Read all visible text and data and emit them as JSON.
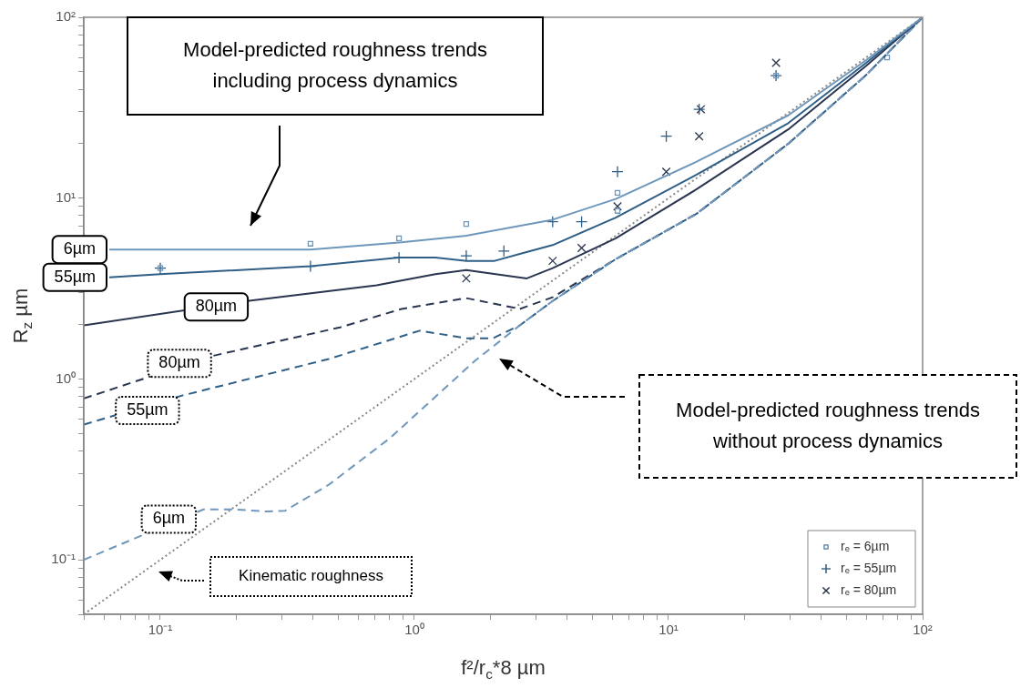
{
  "chart_data": {
    "type": "line",
    "xlabel": "f²/r$_{c}$*8 µm",
    "ylabel": "R$_{z}$ µm",
    "log": "xy",
    "legend": "bottom right",
    "xlim": [
      0.05,
      100
    ],
    "ylim": [
      0.05,
      100
    ],
    "xticks": [
      {
        "value": 0.05,
        "label": null
      },
      {
        "value": 0.06,
        "label": null
      },
      {
        "value": 0.07,
        "label": null
      },
      {
        "value": 0.08,
        "label": null
      },
      {
        "value": 0.09,
        "label": null
      },
      {
        "value": 0.1,
        "label": "10⁻¹"
      },
      {
        "value": 0.2,
        "label": null
      },
      {
        "value": 0.3,
        "label": null
      },
      {
        "value": 0.4,
        "label": null
      },
      {
        "value": 0.5,
        "label": null
      },
      {
        "value": 0.6,
        "label": null
      },
      {
        "value": 0.7,
        "label": null
      },
      {
        "value": 0.8,
        "label": null
      },
      {
        "value": 0.9,
        "label": null
      },
      {
        "value": 1,
        "label": "10⁰"
      },
      {
        "value": 2,
        "label": null
      },
      {
        "value": 3,
        "label": null
      },
      {
        "value": 4,
        "label": null
      },
      {
        "value": 5,
        "label": null
      },
      {
        "value": 6,
        "label": null
      },
      {
        "value": 7,
        "label": null
      },
      {
        "value": 8,
        "label": null
      },
      {
        "value": 9,
        "label": null
      },
      {
        "value": 10,
        "label": "10¹"
      },
      {
        "value": 20,
        "label": null
      },
      {
        "value": 30,
        "label": null
      },
      {
        "value": 40,
        "label": null
      },
      {
        "value": 50,
        "label": null
      },
      {
        "value": 60,
        "label": null
      },
      {
        "value": 70,
        "label": null
      },
      {
        "value": 80,
        "label": null
      },
      {
        "value": 90,
        "label": null
      },
      {
        "value": 100,
        "label": "10²"
      }
    ],
    "yticks": [
      {
        "value": 0.05,
        "label": null
      },
      {
        "value": 0.06,
        "label": null
      },
      {
        "value": 0.07,
        "label": null
      },
      {
        "value": 0.08,
        "label": null
      },
      {
        "value": 0.09,
        "label": null
      },
      {
        "value": 0.1,
        "label": "10⁻¹"
      },
      {
        "value": 0.2,
        "label": null
      },
      {
        "value": 0.3,
        "label": null
      },
      {
        "value": 0.4,
        "label": null
      },
      {
        "value": 0.5,
        "label": null
      },
      {
        "value": 0.6,
        "label": null
      },
      {
        "value": 0.7,
        "label": null
      },
      {
        "value": 0.8,
        "label": null
      },
      {
        "value": 0.9,
        "label": null
      },
      {
        "value": 1,
        "label": "10⁰"
      },
      {
        "value": 2,
        "label": null
      },
      {
        "value": 3,
        "label": null
      },
      {
        "value": 4,
        "label": null
      },
      {
        "value": 5,
        "label": null
      },
      {
        "value": 6,
        "label": null
      },
      {
        "value": 7,
        "label": null
      },
      {
        "value": 8,
        "label": null
      },
      {
        "value": 9,
        "label": null
      },
      {
        "value": 10,
        "label": "10¹"
      },
      {
        "value": 20,
        "label": null
      },
      {
        "value": 30,
        "label": null
      },
      {
        "value": 40,
        "label": null
      },
      {
        "value": 50,
        "label": null
      },
      {
        "value": 60,
        "label": null
      },
      {
        "value": 70,
        "label": null
      },
      {
        "value": 80,
        "label": null
      },
      {
        "value": 90,
        "label": null
      },
      {
        "value": 100,
        "label": "10²"
      }
    ],
    "series": [
      {
        "color": "#6f97bb",
        "line_style": "solid",
        "x": [
          0.063,
          0.1,
          0.2,
          0.39,
          0.89,
          1.6,
          3.5,
          6.2,
          12.9,
          29.6,
          60,
          100
        ],
        "values": [
          5.2,
          5.2,
          5.2,
          5.2,
          5.7,
          6.2,
          7.6,
          9.9,
          15.9,
          28.7,
          58,
          100
        ]
      },
      {
        "color": "#2f5f86",
        "line_style": "solid",
        "x": [
          0.063,
          0.1,
          0.39,
          0.87,
          1.21,
          1.6,
          2.07,
          2.72,
          3.5,
          6.2,
          12.9,
          29.6,
          60,
          100
        ],
        "values": [
          3.65,
          3.8,
          4.2,
          4.7,
          4.7,
          4.5,
          4.5,
          5.0,
          5.5,
          7.8,
          13.5,
          26,
          56,
          100
        ]
      },
      {
        "color": "#2a3550",
        "line_style": "solid",
        "x": [
          0.05,
          0.22,
          0.71,
          0.89,
          1.21,
          1.6,
          2.77,
          3.5,
          6.2,
          12.9,
          29.6,
          60,
          100
        ],
        "values": [
          1.98,
          2.7,
          3.3,
          3.5,
          3.8,
          4.0,
          3.6,
          4.1,
          6.0,
          11.2,
          24,
          54,
          100
        ]
      },
      {
        "color": "#6f97bb",
        "line_style": "dashed",
        "x": [
          0.05,
          0.148,
          0.195,
          0.263,
          0.31,
          0.46,
          0.8,
          1.73,
          2.6,
          3.5,
          6.2,
          12.9,
          29.6,
          60,
          100
        ],
        "values": [
          0.1,
          0.19,
          0.19,
          0.185,
          0.187,
          0.26,
          0.47,
          1.26,
          1.98,
          2.7,
          4.6,
          8.2,
          20,
          48,
          100
        ]
      },
      {
        "color": "#2f5f86",
        "line_style": "dashed",
        "x": [
          0.05,
          0.122,
          0.46,
          1.05,
          1.6,
          2.04,
          2.6,
          3.5,
          6.2,
          12.9,
          29.6,
          60,
          100
        ],
        "values": [
          0.56,
          0.81,
          1.29,
          1.85,
          1.68,
          1.68,
          1.98,
          2.7,
          4.6,
          8.2,
          20,
          48,
          100
        ]
      },
      {
        "color": "#2a3550",
        "line_style": "dashed",
        "x": [
          0.05,
          0.16,
          0.51,
          0.89,
          1.6,
          2.6,
          3.5,
          6.2,
          12.9,
          29.6,
          60,
          100
        ],
        "values": [
          0.78,
          1.34,
          1.93,
          2.44,
          2.8,
          2.44,
          2.83,
          4.6,
          8.2,
          20,
          48,
          100
        ]
      },
      {
        "color": "#888888",
        "line_style": "dotted",
        "x": [
          0.05,
          100
        ],
        "values": [
          0.05,
          100
        ]
      },
      {
        "type": "scatter",
        "name": "rₑ = 6µm",
        "color": "#6f97bb",
        "marker": "square",
        "x": [
          0.1,
          0.39,
          0.87,
          1.6,
          6.3,
          6.3,
          26.5,
          72.5
        ],
        "values": [
          4.1,
          5.6,
          6.0,
          7.2,
          10.7,
          8.5,
          47.6,
          60
        ]
      },
      {
        "type": "scatter",
        "name": "rₑ = 55µm",
        "color": "#2f5f86",
        "marker": "plus",
        "x": [
          0.1,
          0.39,
          0.87,
          1.6,
          2.25,
          3.5,
          4.55,
          6.3,
          9.8,
          13.2,
          26.5
        ],
        "values": [
          4.1,
          4.2,
          4.7,
          4.8,
          5.1,
          7.4,
          7.4,
          14,
          22,
          31,
          47.6
        ]
      },
      {
        "type": "scatter",
        "name": "rₑ = 80µm",
        "color": "#2a3550",
        "marker": "cross",
        "x": [
          1.6,
          3.5,
          4.55,
          6.3,
          9.8,
          13.2,
          13.4,
          26.5
        ],
        "values": [
          3.6,
          4.5,
          5.3,
          9.0,
          14,
          22,
          31,
          56
        ]
      }
    ],
    "annotations": [
      "Model-predicted roughness trends including process dynamics",
      "Model-predicted roughness trends without process dynamics",
      "Kinematic roughness",
      {
        "text": "6µm",
        "x": 0.063,
        "y": 5.2
      },
      {
        "text": "55µm",
        "x": 0.063,
        "y": 3.65
      },
      {
        "text": "80µm",
        "x": 0.166,
        "y": 2.5
      },
      {
        "text": "80µm",
        "x": 0.119,
        "y": 1.22
      },
      {
        "text": "55µm",
        "x": 0.089,
        "y": 0.67
      },
      {
        "text": "6µm",
        "x": 0.108,
        "y": 0.168
      }
    ]
  }
}
